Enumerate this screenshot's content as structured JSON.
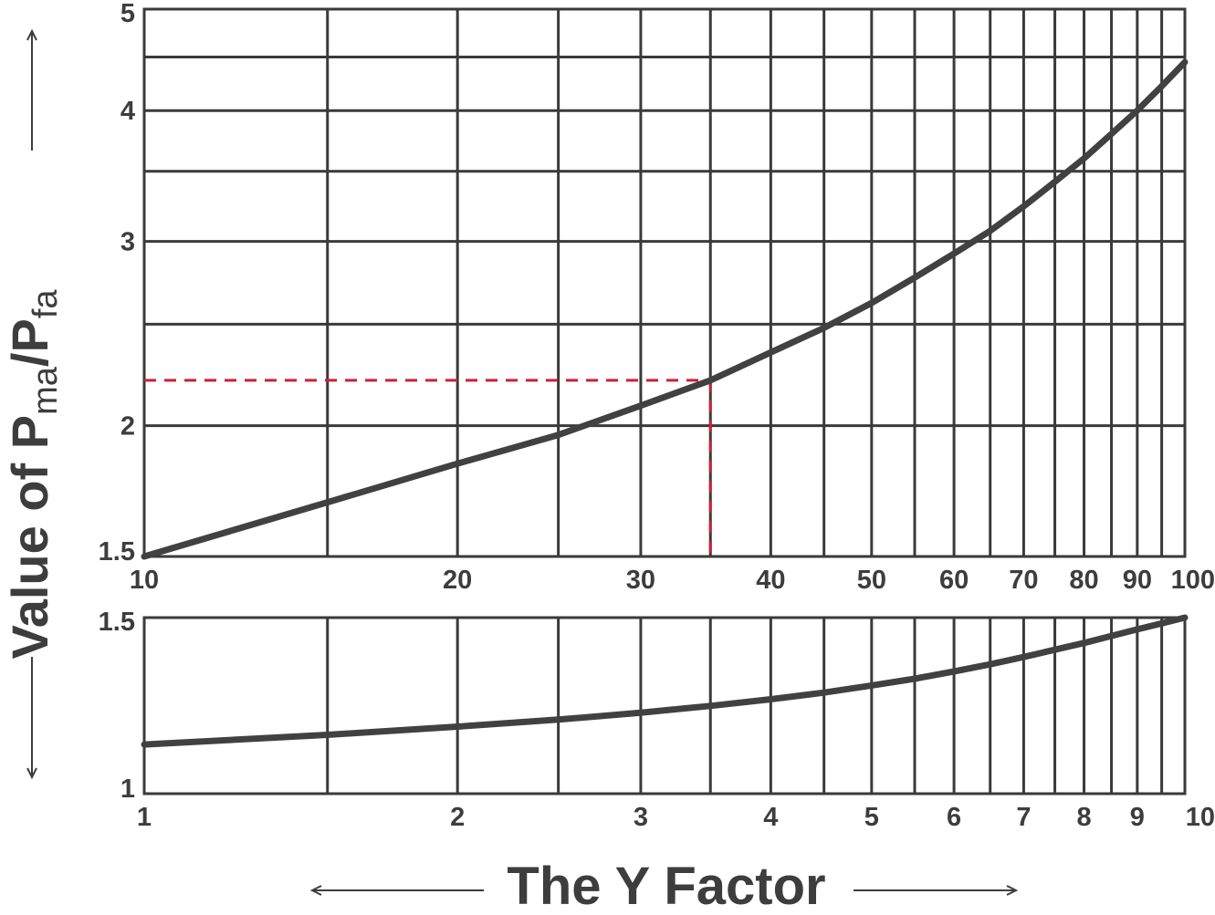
{
  "chart_data": [
    {
      "type": "line",
      "id": "upper",
      "xscale": "log",
      "yscale": "log",
      "xlim": [
        10,
        100
      ],
      "ylim": [
        1.5,
        5
      ],
      "x_ticks": [
        "10",
        "20",
        "30",
        "40",
        "50",
        "60",
        "70",
        "80",
        "90",
        "100"
      ],
      "x_grid": [
        15,
        20,
        25,
        30,
        35,
        40,
        45,
        50,
        55,
        60,
        65,
        70,
        75,
        80,
        85,
        90,
        95
      ],
      "y_ticks": [
        "1.5",
        "2",
        "3",
        "4",
        "5"
      ],
      "y_grid": [
        2,
        2.5,
        3,
        3.5,
        4,
        4.5
      ],
      "grid": true,
      "series": [
        {
          "x": [
            10,
            15,
            20,
            25,
            30,
            35,
            40,
            45,
            50,
            55,
            60,
            65,
            70,
            75,
            80,
            85,
            90,
            95,
            100
          ],
          "y": [
            1.5,
            1.69,
            1.84,
            1.96,
            2.09,
            2.21,
            2.35,
            2.48,
            2.62,
            2.77,
            2.92,
            3.07,
            3.24,
            3.42,
            3.6,
            3.8,
            4.0,
            4.22,
            4.45
          ]
        }
      ],
      "guide": {
        "x": 35,
        "y": 2.21
      }
    },
    {
      "type": "line",
      "id": "lower",
      "xscale": "log",
      "yscale": "log",
      "xlim": [
        1,
        10
      ],
      "ylim": [
        1,
        1.5
      ],
      "x_ticks": [
        "1",
        "2",
        "3",
        "4",
        "5",
        "6",
        "7",
        "8",
        "9",
        "10"
      ],
      "x_grid": [
        1.5,
        2,
        2.5,
        3,
        3.5,
        4,
        4.5,
        5,
        5.5,
        6,
        6.5,
        7,
        7.5,
        8,
        8.5,
        9,
        9.5
      ],
      "y_ticks": [
        "1",
        "1.5"
      ],
      "y_grid": [],
      "grid": true,
      "series": [
        {
          "x": [
            1,
            1.5,
            2,
            2.5,
            3,
            3.5,
            4,
            4.5,
            5,
            5.5,
            6,
            6.5,
            7,
            7.5,
            8,
            8.5,
            9,
            9.5,
            10
          ],
          "y": [
            1.12,
            1.145,
            1.167,
            1.186,
            1.205,
            1.224,
            1.243,
            1.262,
            1.283,
            1.303,
            1.325,
            1.347,
            1.37,
            1.393,
            1.415,
            1.438,
            1.46,
            1.48,
            1.5
          ]
        }
      ]
    }
  ],
  "xlabel": "The Y Factor",
  "ylabel_main": "Value of P",
  "ylabel_sub1": "ma",
  "ylabel_slash": "/P",
  "ylabel_sub2": "fa",
  "colors": {
    "curve": "#414141",
    "grid": "#3a3a3a",
    "guide": "#cc1f3a",
    "text": "#3d3d3d"
  }
}
